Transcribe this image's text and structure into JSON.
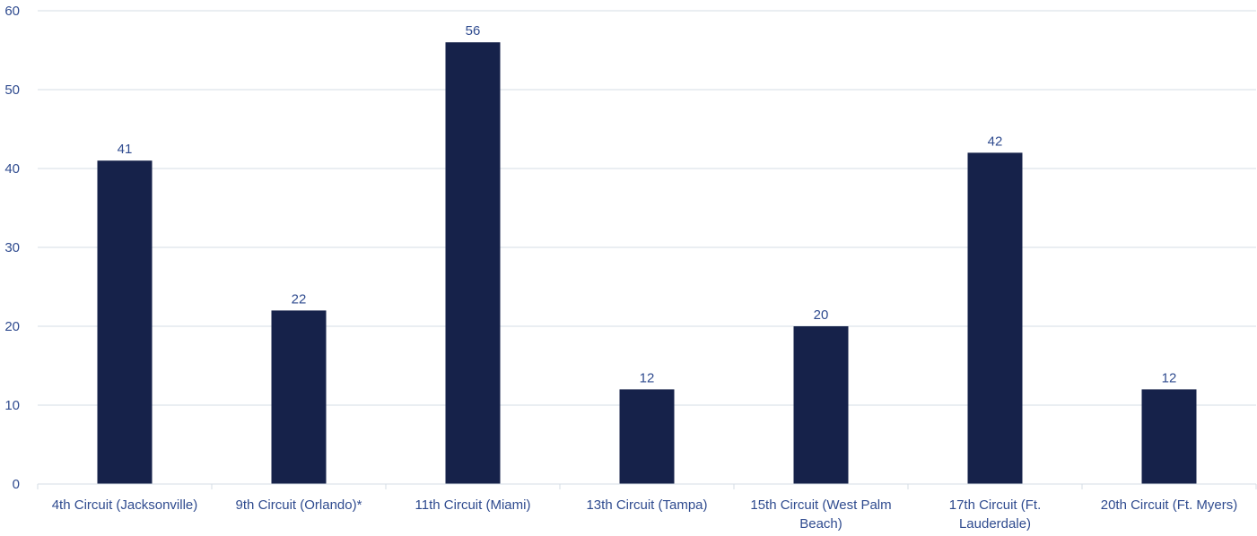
{
  "chart_data": {
    "type": "bar",
    "categories": [
      "4th Circuit (Jacksonville)",
      "9th Circuit (Orlando)*",
      "11th Circuit (Miami)",
      "13th Circuit (Tampa)",
      "15th Circuit (West Palm Beach)",
      "17th Circuit (Ft. Lauderdale)",
      "20th Circuit (Ft. Myers)"
    ],
    "category_lines": [
      [
        "4th Circuit (Jacksonville)"
      ],
      [
        "9th Circuit (Orlando)*"
      ],
      [
        "11th Circuit (Miami)"
      ],
      [
        "13th Circuit (Tampa)"
      ],
      [
        "15th Circuit (West Palm",
        "Beach)"
      ],
      [
        "17th Circuit (Ft.",
        "Lauderdale)"
      ],
      [
        "20th Circuit (Ft. Myers)"
      ]
    ],
    "values": [
      41,
      22,
      56,
      12,
      20,
      42,
      12
    ],
    "data_labels": [
      "41",
      "22",
      "56",
      "12",
      "20",
      "42",
      "12"
    ],
    "yticks": [
      "0",
      "10",
      "20",
      "30",
      "40",
      "50",
      "60"
    ],
    "ylim": [
      0,
      60
    ],
    "grid": true,
    "legend": "none",
    "bar_color": "#16224a",
    "grid_color": "#d6dde6",
    "text_color": "#2f4b8f"
  }
}
